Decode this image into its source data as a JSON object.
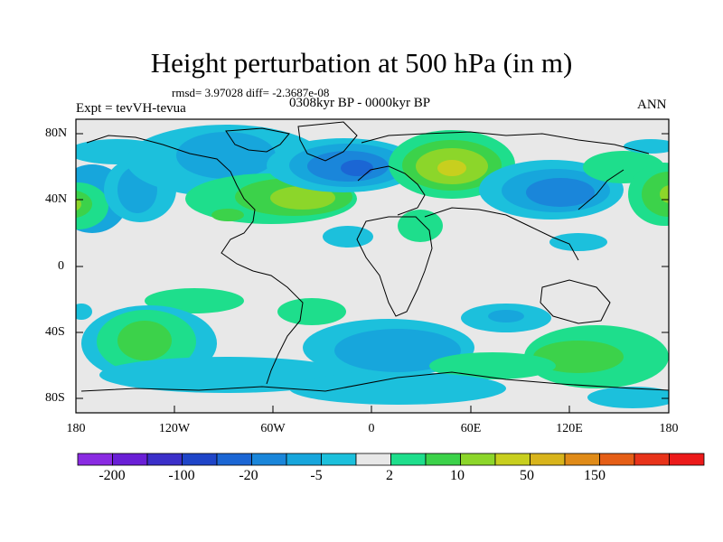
{
  "title": "Height perturbation at 500 hPa (in m)",
  "stats": "rmsd= 3.97028 diff= -2.3687e-08",
  "experiment": "Expt = tevVH-tevua",
  "period": "0308kyr BP - 0000kyr BP",
  "season": "ANN",
  "y_ticks": [
    "80N",
    "40N",
    "0",
    "40S",
    "80S"
  ],
  "x_ticks": [
    "180",
    "120W",
    "60W",
    "0",
    "60E",
    "120E",
    "180"
  ],
  "colorbar": {
    "colors": [
      "#8a2be2",
      "#6a1fd6",
      "#3b2fc9",
      "#1f45c8",
      "#1b66d4",
      "#1a86da",
      "#17a6dc",
      "#1cc0dc",
      "#e8e8e8",
      "#1ede8c",
      "#3cd24a",
      "#8cd62a",
      "#c8cf1e",
      "#d8b41b",
      "#e08b18",
      "#e55e16",
      "#e8331a",
      "#ec1a1a"
    ],
    "labels": [
      "-200",
      "-100",
      "-20",
      "-5",
      "2",
      "10",
      "50",
      "150"
    ]
  },
  "map_field": [
    {
      "level": "-5",
      "region": "N Pacific/Canada",
      "cx": 155,
      "cy": 208,
      "rx": 50,
      "ry": 38
    },
    {
      "level": "-5",
      "region": "Greenland",
      "cx": 210,
      "cy": 186,
      "rx": 105,
      "ry": 38
    },
    {
      "level": "-20",
      "region": "Greenland core",
      "cx": 370,
      "cy": 185,
      "rx": 55,
      "ry": 20
    },
    {
      "level": "10",
      "region": "N Atlantic",
      "cx": 317,
      "cy": 216,
      "rx": 70,
      "ry": 22
    },
    {
      "level": "50",
      "region": "Siberia core",
      "cx": 500,
      "cy": 184,
      "rx": 30,
      "ry": 15
    },
    {
      "level": "-20",
      "region": "Asia",
      "cx": 620,
      "cy": 213,
      "rx": 60,
      "ry": 22
    },
    {
      "level": "-5",
      "region": "South Atlantic",
      "cx": 430,
      "cy": 383,
      "rx": 90,
      "ry": 30
    },
    {
      "level": "10",
      "region": "South Pacific",
      "cx": 160,
      "cy": 375,
      "rx": 40,
      "ry": 35
    }
  ]
}
